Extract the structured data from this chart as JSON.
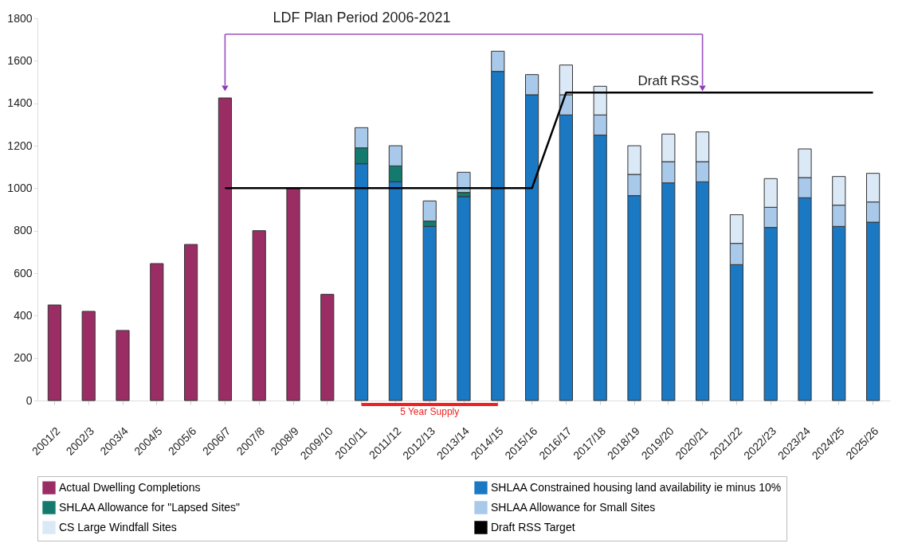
{
  "chart_data": {
    "type": "bar",
    "stacked": true,
    "legend": "bottom",
    "categories": [
      "2001/2",
      "2002/3",
      "2003/4",
      "2004/5",
      "2005/6",
      "2006/7",
      "2007/8",
      "2008/9",
      "2009/10",
      "2010/11",
      "2011/12",
      "2012/13",
      "2013/14",
      "2014/15",
      "2015/16",
      "2016/17",
      "2017/18",
      "2018/19",
      "2019/20",
      "2020/21",
      "2021/22",
      "2022/23",
      "2023/24",
      "2024/25",
      "2025/26"
    ],
    "ylim": [
      0,
      1800
    ],
    "yticks": [
      0,
      200,
      400,
      600,
      800,
      1000,
      1200,
      1400,
      1600,
      1800
    ],
    "series": [
      {
        "name": "Actual Dwelling Completions",
        "color": "#9b2d65",
        "values": [
          450,
          420,
          330,
          645,
          735,
          1425,
          800,
          1000,
          500,
          null,
          null,
          null,
          null,
          null,
          null,
          null,
          null,
          null,
          null,
          null,
          null,
          null,
          null,
          null,
          null
        ]
      },
      {
        "name": "SHLAA Constrained housing land availability ie minus 10%",
        "color": "#1b78c2",
        "values": [
          null,
          null,
          null,
          null,
          null,
          null,
          null,
          null,
          null,
          1115,
          1030,
          820,
          960,
          1550,
          1440,
          1345,
          1250,
          965,
          1025,
          1030,
          640,
          815,
          955,
          820,
          840
        ]
      },
      {
        "name": "SHLAA Allowance for \"Lapsed Sites\"",
        "color": "#147a6e",
        "values": [
          null,
          null,
          null,
          null,
          null,
          null,
          null,
          null,
          null,
          75,
          75,
          25,
          20,
          null,
          null,
          null,
          null,
          null,
          null,
          null,
          null,
          null,
          null,
          null,
          null
        ]
      },
      {
        "name": "SHLAA Allowance for Small Sites",
        "color": "#a9c9ea",
        "values": [
          null,
          null,
          null,
          null,
          null,
          null,
          null,
          null,
          null,
          95,
          95,
          95,
          95,
          95,
          95,
          95,
          95,
          100,
          100,
          95,
          100,
          95,
          95,
          100,
          95
        ]
      },
      {
        "name": "CS Large Windfall Sites",
        "color": "#dbe9f7",
        "values": [
          null,
          null,
          null,
          null,
          null,
          null,
          null,
          null,
          null,
          null,
          null,
          null,
          null,
          null,
          null,
          140,
          135,
          135,
          130,
          140,
          135,
          135,
          135,
          135,
          135
        ]
      },
      {
        "name": "Draft RSS Target",
        "type": "line",
        "color": "#000000",
        "values": [
          null,
          null,
          null,
          null,
          null,
          1000,
          1000,
          1000,
          1000,
          1000,
          1000,
          1000,
          1000,
          1000,
          1000,
          1450,
          1450,
          1450,
          1450,
          1450,
          1450,
          1450,
          1450,
          1450,
          1450
        ]
      }
    ],
    "annotations": [
      "LDF Plan Period 2006-2021",
      "5 Year Supply",
      {
        "text": "Draft RSS",
        "x": "2019/20",
        "y": 1450
      }
    ]
  }
}
